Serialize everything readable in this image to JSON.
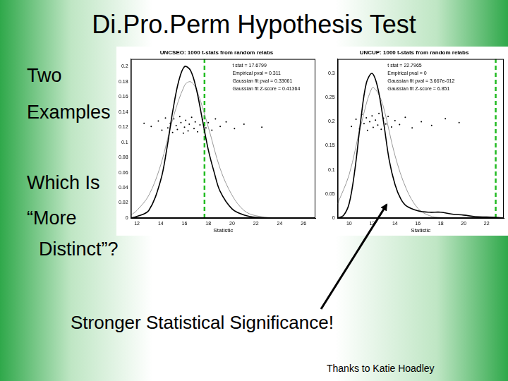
{
  "slide": {
    "title": "Di.Pro.Perm Hypothesis Test",
    "left_text": [
      "Two",
      "Examples",
      "Which Is",
      "“More",
      "Distinct”?"
    ],
    "caption": "Stronger Statistical Significance!",
    "credit": "Thanks to Katie Hoadley"
  },
  "chart_data": [
    {
      "type": "line",
      "title": "UNCSEO: 1000 t-stats from random relabs",
      "x_label": "Statistic",
      "xlim": [
        11.5,
        27
      ],
      "xticks": [
        12,
        14,
        16,
        18,
        20,
        22,
        24,
        26
      ],
      "ylim": [
        0,
        0.21
      ],
      "yticks": [
        0,
        0.02,
        0.04,
        0.06,
        0.08,
        0.1,
        0.12,
        0.14,
        0.16,
        0.18,
        0.2
      ],
      "grid": false,
      "annotations": [
        "t stat = 17.6799",
        "Empirical pval = 0.311",
        "Gaussian fit pval = 0.33061",
        "Gaussian fit Z-score = 0.41364"
      ],
      "series": [
        {
          "type": "line",
          "color": "#000000",
          "line_style": "solid",
          "x": [
            11.5,
            12,
            13,
            14,
            14.5,
            15,
            15.5,
            16,
            16.5,
            17,
            17.5,
            18,
            18.5,
            19,
            20,
            21,
            22,
            24,
            27
          ],
          "values": [
            0,
            0.002,
            0.01,
            0.05,
            0.09,
            0.14,
            0.18,
            0.2,
            0.195,
            0.17,
            0.13,
            0.09,
            0.06,
            0.035,
            0.012,
            0.004,
            0.001,
            0,
            0
          ]
        },
        {
          "type": "line",
          "color": "#9a9a9a",
          "line_style": "solid",
          "x": [
            11.5,
            12,
            13,
            14,
            15,
            16,
            16.5,
            17,
            18,
            19,
            20,
            21,
            22,
            24,
            27
          ],
          "values": [
            0.004,
            0.01,
            0.03,
            0.07,
            0.13,
            0.175,
            0.18,
            0.17,
            0.12,
            0.065,
            0.03,
            0.01,
            0.003,
            0,
            0
          ]
        },
        {
          "type": "scatter",
          "color": "#000000",
          "marker": "dot",
          "x": [
            12.6,
            13.2,
            13.8,
            14.1,
            14.4,
            14.6,
            14.8,
            15.0,
            15.1,
            15.3,
            15.4,
            15.6,
            15.7,
            15.9,
            16.0,
            16.1,
            16.3,
            16.4,
            16.6,
            16.8,
            16.9,
            17.1,
            17.3,
            17.5,
            17.8,
            18.0,
            18.3,
            18.6,
            19.0,
            19.5,
            20.2,
            21.0,
            22.5
          ],
          "values": [
            0.125,
            0.121,
            0.128,
            0.116,
            0.132,
            0.119,
            0.125,
            0.113,
            0.131,
            0.122,
            0.117,
            0.134,
            0.126,
            0.112,
            0.12,
            0.129,
            0.115,
            0.124,
            0.133,
            0.118,
            0.127,
            0.114,
            0.123,
            0.13,
            0.119,
            0.126,
            0.116,
            0.131,
            0.121,
            0.127,
            0.118,
            0.124,
            0.12
          ]
        },
        {
          "type": "line",
          "color": "#22bb22",
          "line_style": "dashed",
          "x": [
            17.6799,
            17.6799
          ],
          "values": [
            0,
            0.21
          ]
        }
      ]
    },
    {
      "type": "line",
      "title": "UNCUP: 1000 t-stats from random relabs",
      "x_label": "Statistic",
      "xlim": [
        9,
        23.5
      ],
      "xticks": [
        10,
        12,
        14,
        16,
        18,
        20,
        22
      ],
      "ylim": [
        0,
        0.33
      ],
      "yticks": [
        0,
        0.05,
        0.1,
        0.15,
        0.2,
        0.25,
        0.3
      ],
      "grid": false,
      "annotations": [
        "t stat = 22.7965",
        "Empirical pval = 0",
        "Gaussian fit pval = 3.667e-012",
        "Gaussian fit Z-score = 6.851"
      ],
      "series": [
        {
          "type": "line",
          "color": "#000000",
          "line_style": "solid",
          "x": [
            9,
            9.5,
            10,
            10.5,
            11,
            11.5,
            12,
            12.5,
            13,
            13.5,
            14,
            14.5,
            15,
            16,
            17,
            18,
            19,
            20,
            21,
            22,
            23,
            23.5
          ],
          "values": [
            0,
            0.005,
            0.03,
            0.1,
            0.2,
            0.28,
            0.3,
            0.27,
            0.2,
            0.12,
            0.07,
            0.04,
            0.025,
            0.015,
            0.012,
            0.012,
            0.008,
            0.006,
            0.003,
            0.002,
            0.001,
            0
          ]
        },
        {
          "type": "line",
          "color": "#9a9a9a",
          "line_style": "solid",
          "x": [
            9,
            10,
            11,
            12,
            12.5,
            13,
            14,
            15,
            16,
            17,
            18,
            20,
            23.5
          ],
          "values": [
            0.03,
            0.09,
            0.19,
            0.27,
            0.26,
            0.23,
            0.13,
            0.06,
            0.02,
            0.005,
            0.001,
            0,
            0
          ]
        },
        {
          "type": "scatter",
          "color": "#000000",
          "marker": "dot",
          "x": [
            10.2,
            10.6,
            10.9,
            11.1,
            11.3,
            11.5,
            11.6,
            11.8,
            12.0,
            12.1,
            12.3,
            12.5,
            12.6,
            12.8,
            13.0,
            13.2,
            13.4,
            13.7,
            14.0,
            14.4,
            14.9,
            15.5,
            16.3,
            17.2,
            18.4,
            19.6
          ],
          "values": [
            0.19,
            0.205,
            0.185,
            0.215,
            0.196,
            0.208,
            0.182,
            0.2,
            0.212,
            0.188,
            0.203,
            0.193,
            0.217,
            0.184,
            0.207,
            0.195,
            0.211,
            0.189,
            0.202,
            0.194,
            0.209,
            0.187,
            0.2,
            0.192,
            0.206,
            0.198
          ]
        },
        {
          "type": "line",
          "color": "#22bb22",
          "line_style": "dashed",
          "x": [
            22.7965,
            22.7965
          ],
          "values": [
            0,
            0.33
          ]
        }
      ]
    }
  ]
}
